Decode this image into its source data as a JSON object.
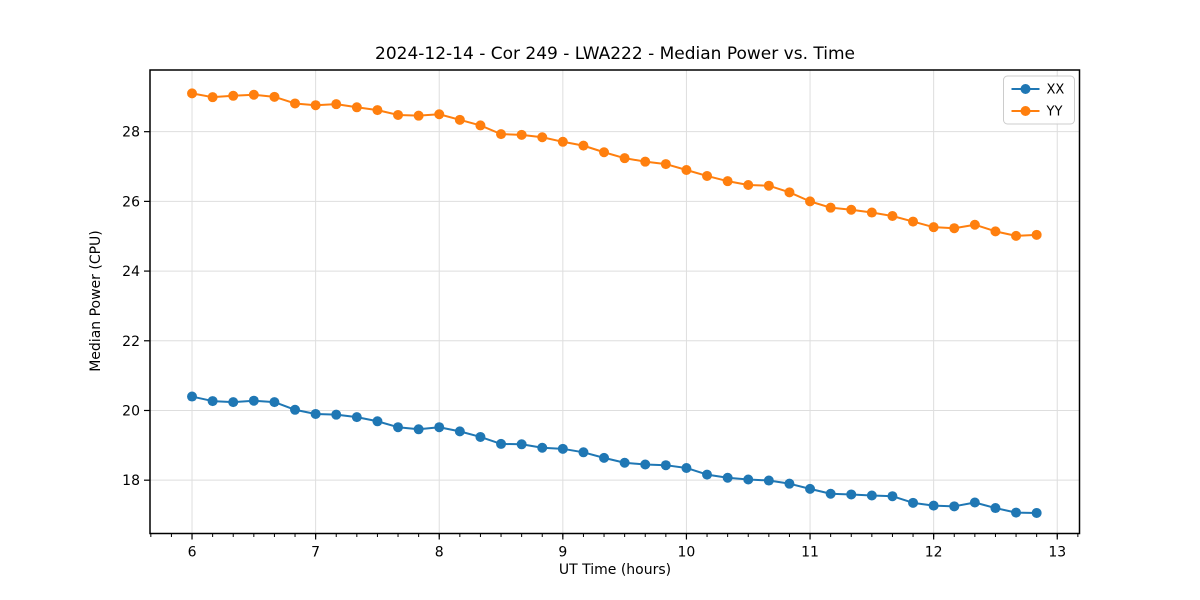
{
  "figure": {
    "title": "2024-12-14 - Cor 249 - LWA222 - Median Power vs. Time"
  },
  "chart_data": {
    "type": "line",
    "title": "2024-12-14 - Cor 249 - LWA222 - Median Power vs. Time",
    "xlabel": "UT Time (hours)",
    "ylabel": "Median Power (CPU)",
    "x": [
      6.0,
      6.1667,
      6.3333,
      6.5,
      6.6667,
      6.8333,
      7.0,
      7.1667,
      7.3333,
      7.5,
      7.6667,
      7.8333,
      8.0,
      8.1667,
      8.3333,
      8.5,
      8.6667,
      8.8333,
      9.0,
      9.1667,
      9.3333,
      9.5,
      9.6667,
      9.8333,
      10.0,
      10.1667,
      10.3333,
      10.5,
      10.6667,
      10.8333,
      11.0,
      11.1667,
      11.3333,
      11.5,
      11.6667,
      11.8333,
      12.0,
      12.1667,
      12.3333,
      12.5,
      12.6667,
      12.8333
    ],
    "series": [
      {
        "name": "XX",
        "color": "#1f77b4",
        "values": [
          20.4,
          20.27,
          20.24,
          20.28,
          20.24,
          20.02,
          19.9,
          19.88,
          19.81,
          19.69,
          19.52,
          19.46,
          19.52,
          19.4,
          19.24,
          19.04,
          19.03,
          18.93,
          18.9,
          18.8,
          18.64,
          18.5,
          18.45,
          18.43,
          18.35,
          18.16,
          18.07,
          18.02,
          17.99,
          17.9,
          17.75,
          17.61,
          17.59,
          17.56,
          17.54,
          17.35,
          17.27,
          17.25,
          17.36,
          17.2,
          17.07,
          17.06
        ]
      },
      {
        "name": "YY",
        "color": "#ff7f0e",
        "values": [
          29.1,
          28.99,
          29.03,
          29.06,
          29.0,
          28.81,
          28.76,
          28.79,
          28.7,
          28.62,
          28.48,
          28.46,
          28.5,
          28.34,
          28.18,
          27.93,
          27.91,
          27.84,
          27.71,
          27.6,
          27.41,
          27.24,
          27.14,
          27.07,
          26.9,
          26.73,
          26.58,
          26.47,
          26.45,
          26.26,
          26.0,
          25.82,
          25.76,
          25.68,
          25.58,
          25.42,
          25.26,
          25.23,
          25.33,
          25.14,
          25.01,
          25.04
        ]
      }
    ],
    "xlim": [
      5.66,
      13.18
    ],
    "ylim": [
      16.47,
      29.77
    ],
    "x_ticks": [
      6,
      7,
      8,
      9,
      10,
      11,
      12,
      13
    ],
    "x_tick_labels": [
      "6",
      "7",
      "8",
      "9",
      "10",
      "11",
      "12",
      "13"
    ],
    "x_minor_step": 0.166667,
    "y_ticks": [
      18,
      20,
      22,
      24,
      26,
      28
    ],
    "y_tick_labels": [
      "18",
      "20",
      "22",
      "24",
      "26",
      "28"
    ],
    "grid": true,
    "grid_color": "#dedede",
    "legend_position": "upper right",
    "marker": "circle",
    "line_width": 2,
    "marker_radius": 5
  }
}
